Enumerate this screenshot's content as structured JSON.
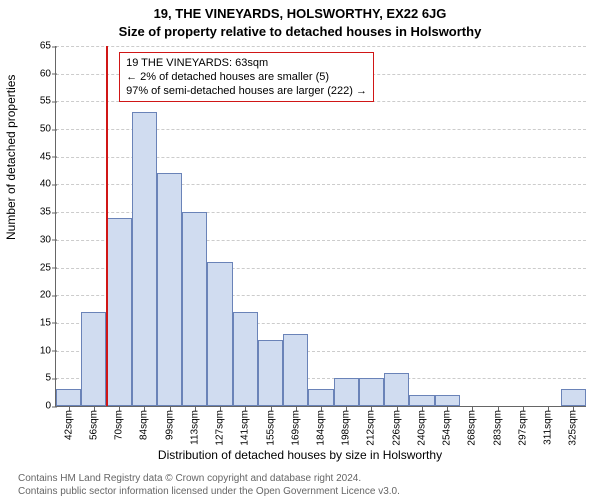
{
  "title_line1": "19, THE VINEYARDS, HOLSWORTHY, EX22 6JG",
  "title_line2": "Size of property relative to detached houses in Holsworthy",
  "title_fontsize": 13,
  "ylabel": "Number of detached properties",
  "xlabel": "Distribution of detached houses by size in Holsworthy",
  "axis_fontsize": 12,
  "footer_line1": "Contains HM Land Registry data © Crown copyright and database right 2024.",
  "footer_line2": "Contains public sector information licensed under the Open Government Licence v3.0.",
  "footer_fontsize": 10,
  "chart": {
    "type": "histogram",
    "background_color": "#ffffff",
    "grid_color": "#cccccc",
    "axis_color": "#666666",
    "bar_fill": "#d0dcf0",
    "bar_border": "#6a83b8",
    "bar_width_ratio": 1.0,
    "ylim": [
      0,
      65
    ],
    "ytick_step": 5,
    "tick_fontsize": 10,
    "x_categories": [
      "42sqm",
      "56sqm",
      "70sqm",
      "84sqm",
      "99sqm",
      "113sqm",
      "127sqm",
      "141sqm",
      "155sqm",
      "169sqm",
      "184sqm",
      "198sqm",
      "212sqm",
      "226sqm",
      "240sqm",
      "254sqm",
      "268sqm",
      "283sqm",
      "297sqm",
      "311sqm",
      "325sqm"
    ],
    "values": [
      3,
      17,
      34,
      53,
      42,
      35,
      26,
      17,
      12,
      13,
      3,
      5,
      5,
      6,
      2,
      2,
      0,
      0,
      0,
      0,
      3
    ],
    "reference_line": {
      "category_index_fractional": 1.5,
      "color": "#d01616"
    },
    "annotation": {
      "lines": [
        "19 THE VINEYARDS: 63sqm",
        "← 2% of detached houses are smaller (5)",
        "97% of semi-detached houses are larger (222) →"
      ],
      "border_color": "#d01616",
      "fontsize": 11,
      "left_category_index": 2.0,
      "top_y_value": 64
    }
  }
}
